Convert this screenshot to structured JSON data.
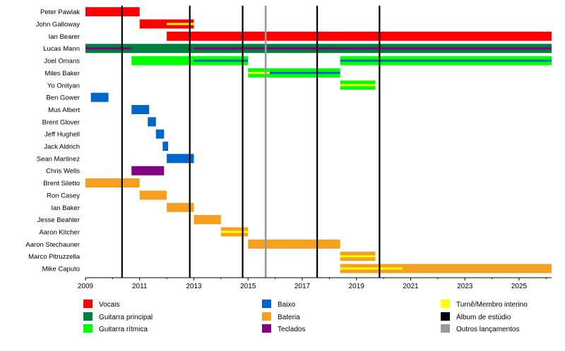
{
  "chart_data": {
    "type": "timeline",
    "title": "",
    "xlabel": "",
    "ylabel": "",
    "xlim": [
      2009,
      2026.2
    ],
    "xticks": [
      "2009",
      "2011",
      "2013",
      "2015",
      "2017",
      "2019",
      "2021",
      "2023",
      "2025"
    ],
    "colors": {
      "vocais": "#ff0000",
      "guitarra_principal": "#008040",
      "guitarra_ritmica": "#00ff00",
      "baixo": "#0066cc",
      "bateria": "#f5a020",
      "teclados": "#800080",
      "turne": "#ffff00",
      "album": "#000000",
      "outros": "#999999"
    },
    "legend": [
      {
        "key": "vocais",
        "label": "Vocais"
      },
      {
        "key": "guitarra_principal",
        "label": "Guitarra principal"
      },
      {
        "key": "guitarra_ritmica",
        "label": "Guitarra rítmica"
      },
      {
        "key": "baixo",
        "label": "Baixo"
      },
      {
        "key": "bateria",
        "label": "Bateria"
      },
      {
        "key": "teclados",
        "label": "Teclados"
      },
      {
        "key": "turne",
        "label": "Turnê/Membro interino"
      },
      {
        "key": "album",
        "label": "Álbum de estúdio"
      },
      {
        "key": "outros",
        "label": "Outros lançamentos"
      }
    ],
    "events": [
      {
        "type": "album",
        "x": 2010.35
      },
      {
        "type": "album",
        "x": 2012.85
      },
      {
        "type": "album",
        "x": 2014.8
      },
      {
        "type": "outros",
        "x": 2015.65
      },
      {
        "type": "album",
        "x": 2017.55
      },
      {
        "type": "album",
        "x": 2019.85
      }
    ],
    "members": [
      {
        "name": "Peter Pawlak",
        "bars": [
          {
            "role": "vocais",
            "start": 2009.0,
            "end": 2011.0
          }
        ]
      },
      {
        "name": "John Galloway",
        "bars": [
          {
            "role": "vocais",
            "start": 2011.0,
            "end": 2013.0
          },
          {
            "role": "turne",
            "start": 2012.0,
            "end": 2013.0,
            "accent": true
          }
        ]
      },
      {
        "name": "Ian Bearer",
        "bars": [
          {
            "role": "vocais",
            "start": 2012.0,
            "end": 2026.2
          }
        ]
      },
      {
        "name": "Lucas Mann",
        "bars": [
          {
            "role": "guitarra_principal",
            "start": 2009.0,
            "end": 2026.2
          },
          {
            "role": "teclados",
            "start": 2009.0,
            "end": 2010.7,
            "accent": true
          },
          {
            "role": "teclados",
            "start": 2013.0,
            "end": 2026.2,
            "accent": true
          }
        ]
      },
      {
        "name": "Joel Omans",
        "bars": [
          {
            "role": "guitarra_ritmica",
            "start": 2010.7,
            "end": 2015.0
          },
          {
            "role": "baixo",
            "start": 2013.0,
            "end": 2015.0,
            "accent": true
          },
          {
            "role": "guitarra_ritmica",
            "start": 2018.4,
            "end": 2026.2
          },
          {
            "role": "baixo",
            "start": 2018.4,
            "end": 2026.2,
            "accent": true
          }
        ]
      },
      {
        "name": "Miles Baker",
        "bars": [
          {
            "role": "guitarra_ritmica",
            "start": 2015.0,
            "end": 2018.4
          },
          {
            "role": "baixo",
            "start": 2015.0,
            "end": 2018.4,
            "accent": true
          },
          {
            "role": "turne",
            "start": 2015.0,
            "end": 2015.8,
            "accent": true
          }
        ]
      },
      {
        "name": "Yo Onityan",
        "bars": [
          {
            "role": "guitarra_ritmica",
            "start": 2018.4,
            "end": 2019.7
          },
          {
            "role": "turne",
            "start": 2018.4,
            "end": 2019.7,
            "accent": true
          }
        ]
      },
      {
        "name": "Ben Gower",
        "bars": [
          {
            "role": "baixo",
            "start": 2009.2,
            "end": 2009.85
          }
        ]
      },
      {
        "name": "Mus Albert",
        "bars": [
          {
            "role": "baixo",
            "start": 2010.7,
            "end": 2011.35
          }
        ]
      },
      {
        "name": "Brent Glover",
        "bars": [
          {
            "role": "baixo",
            "start": 2011.3,
            "end": 2011.6
          }
        ]
      },
      {
        "name": "Jeff Hughell",
        "bars": [
          {
            "role": "baixo",
            "start": 2011.6,
            "end": 2011.9
          }
        ]
      },
      {
        "name": "Jack Aldrich",
        "bars": [
          {
            "role": "baixo",
            "start": 2011.85,
            "end": 2012.05
          }
        ]
      },
      {
        "name": "Sean Martinez",
        "bars": [
          {
            "role": "baixo",
            "start": 2012.0,
            "end": 2013.0
          }
        ]
      },
      {
        "name": "Chris Wells",
        "bars": [
          {
            "role": "teclados",
            "start": 2010.7,
            "end": 2011.9
          }
        ]
      },
      {
        "name": "Brent Siletto",
        "bars": [
          {
            "role": "bateria",
            "start": 2009.0,
            "end": 2011.0
          }
        ]
      },
      {
        "name": "Ron Casey",
        "bars": [
          {
            "role": "bateria",
            "start": 2011.0,
            "end": 2012.0
          }
        ]
      },
      {
        "name": "Ian Baker",
        "bars": [
          {
            "role": "bateria",
            "start": 2012.0,
            "end": 2013.0
          }
        ]
      },
      {
        "name": "Jesse Beahler",
        "bars": [
          {
            "role": "bateria",
            "start": 2013.0,
            "end": 2014.0
          }
        ]
      },
      {
        "name": "Aaron Kitcher",
        "bars": [
          {
            "role": "bateria",
            "start": 2014.0,
            "end": 2015.0
          },
          {
            "role": "turne",
            "start": 2014.0,
            "end": 2015.0,
            "accent": true
          }
        ]
      },
      {
        "name": "Aaron Stechauner",
        "bars": [
          {
            "role": "bateria",
            "start": 2015.0,
            "end": 2018.4
          }
        ]
      },
      {
        "name": "Marco Pitruzzella",
        "bars": [
          {
            "role": "bateria",
            "start": 2018.4,
            "end": 2019.7
          },
          {
            "role": "turne",
            "start": 2018.4,
            "end": 2019.7,
            "accent": true
          }
        ]
      },
      {
        "name": "Mike Caputo",
        "bars": [
          {
            "role": "bateria",
            "start": 2018.4,
            "end": 2026.2
          },
          {
            "role": "turne",
            "start": 2018.4,
            "end": 2020.7,
            "accent": true
          }
        ]
      }
    ]
  }
}
